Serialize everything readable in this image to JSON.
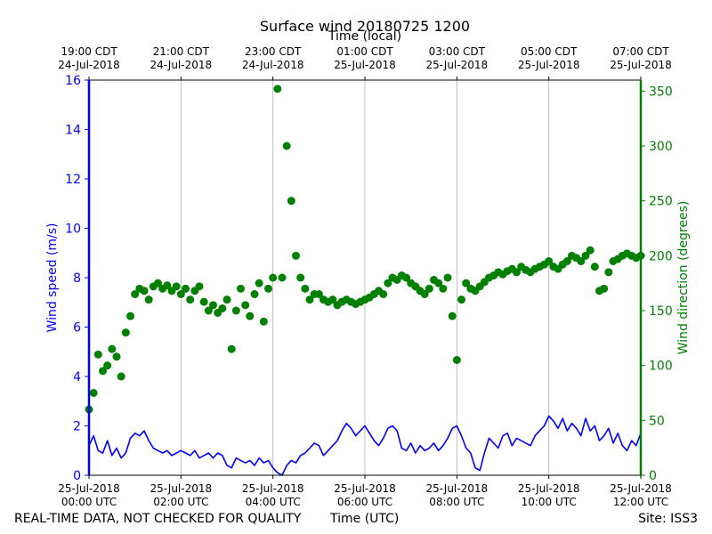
{
  "title": "Surface wind 20180725 1200",
  "top_axis_label": "Time (local)",
  "footer": {
    "left": "REAL-TIME DATA, NOT CHECKED FOR QUALITY",
    "center": "Time (UTC)",
    "right": "Site: ISS3"
  },
  "colors": {
    "speed": "#0000ff",
    "direction": "#008000",
    "grid": "#b0b0b0"
  },
  "chart_data": {
    "type": "line",
    "title": "Surface wind 20180725 1200",
    "xlabel": "Time (UTC)",
    "x2label": "Time (local)",
    "ylabel": "Wind speed (m/s)",
    "y2label": "Wind direction (degrees)",
    "xlim_hours_utc": [
      0,
      12
    ],
    "ylim": [
      0,
      16
    ],
    "y2lim": [
      0,
      360
    ],
    "yticks": [
      0,
      2,
      4,
      6,
      8,
      10,
      12,
      14,
      16
    ],
    "y2ticks": [
      0,
      50,
      100,
      150,
      200,
      250,
      300,
      350
    ],
    "grid": "vertical",
    "x_ticks_bottom": [
      {
        "hour": 0,
        "line1": "25-Jul-2018",
        "line2": "00:00 UTC"
      },
      {
        "hour": 2,
        "line1": "25-Jul-2018",
        "line2": "02:00 UTC"
      },
      {
        "hour": 4,
        "line1": "25-Jul-2018",
        "line2": "04:00 UTC"
      },
      {
        "hour": 6,
        "line1": "25-Jul-2018",
        "line2": "06:00 UTC"
      },
      {
        "hour": 8,
        "line1": "25-Jul-2018",
        "line2": "08:00 UTC"
      },
      {
        "hour": 10,
        "line1": "25-Jul-2018",
        "line2": "10:00 UTC"
      },
      {
        "hour": 12,
        "line1": "25-Jul-2018",
        "line2": "12:00 UTC"
      }
    ],
    "x_ticks_top": [
      {
        "hour": 0,
        "line1": "19:00 CDT",
        "line2": "24-Jul-2018"
      },
      {
        "hour": 2,
        "line1": "21:00 CDT",
        "line2": "24-Jul-2018"
      },
      {
        "hour": 4,
        "line1": "23:00 CDT",
        "line2": "24-Jul-2018"
      },
      {
        "hour": 6,
        "line1": "01:00 CDT",
        "line2": "25-Jul-2018"
      },
      {
        "hour": 8,
        "line1": "03:00 CDT",
        "line2": "25-Jul-2018"
      },
      {
        "hour": 10,
        "line1": "05:00 CDT",
        "line2": "25-Jul-2018"
      },
      {
        "hour": 12,
        "line1": "07:00 CDT",
        "line2": "25-Jul-2018"
      }
    ],
    "series": [
      {
        "name": "Wind speed",
        "axis": "left",
        "style": "line",
        "x_hours": [
          0,
          0.1,
          0.2,
          0.3,
          0.4,
          0.5,
          0.6,
          0.7,
          0.8,
          0.9,
          1.0,
          1.1,
          1.2,
          1.3,
          1.4,
          1.5,
          1.6,
          1.7,
          1.8,
          1.9,
          2.0,
          2.1,
          2.2,
          2.3,
          2.4,
          2.5,
          2.6,
          2.7,
          2.8,
          2.9,
          3.0,
          3.1,
          3.2,
          3.3,
          3.4,
          3.5,
          3.6,
          3.7,
          3.8,
          3.9,
          4.0,
          4.1,
          4.2,
          4.3,
          4.4,
          4.5,
          4.6,
          4.7,
          4.8,
          4.9,
          5.0,
          5.1,
          5.2,
          5.3,
          5.4,
          5.5,
          5.6,
          5.7,
          5.8,
          5.9,
          6.0,
          6.1,
          6.2,
          6.3,
          6.4,
          6.5,
          6.6,
          6.7,
          6.8,
          6.9,
          7.0,
          7.1,
          7.2,
          7.3,
          7.4,
          7.5,
          7.6,
          7.7,
          7.8,
          7.9,
          8.0,
          8.1,
          8.2,
          8.3,
          8.4,
          8.5,
          8.6,
          8.7,
          8.8,
          8.9,
          9.0,
          9.1,
          9.2,
          9.3,
          9.4,
          9.5,
          9.6,
          9.7,
          9.8,
          9.9,
          10.0,
          10.1,
          10.2,
          10.3,
          10.4,
          10.5,
          10.6,
          10.7,
          10.8,
          10.9,
          11.0,
          11.1,
          11.2,
          11.3,
          11.4,
          11.5,
          11.6,
          11.7,
          11.8,
          11.9,
          12.0
        ],
        "values": [
          1.2,
          1.6,
          1.0,
          0.9,
          1.4,
          0.8,
          1.1,
          0.7,
          0.9,
          1.5,
          1.7,
          1.6,
          1.8,
          1.4,
          1.1,
          1.0,
          0.9,
          1.0,
          0.8,
          0.9,
          1.0,
          0.9,
          0.8,
          1.0,
          0.7,
          0.8,
          0.9,
          0.7,
          0.9,
          0.8,
          0.4,
          0.3,
          0.7,
          0.6,
          0.5,
          0.6,
          0.4,
          0.7,
          0.5,
          0.6,
          0.3,
          0.1,
          0.0,
          0.4,
          0.6,
          0.5,
          0.8,
          0.9,
          1.1,
          1.3,
          1.2,
          0.8,
          1.0,
          1.2,
          1.4,
          1.8,
          2.1,
          1.9,
          1.6,
          1.8,
          2.0,
          1.7,
          1.4,
          1.2,
          1.5,
          1.9,
          2.0,
          1.8,
          1.1,
          1.0,
          1.3,
          0.9,
          1.2,
          1.0,
          1.1,
          1.3,
          1.0,
          1.2,
          1.5,
          1.9,
          2.0,
          1.6,
          1.1,
          0.9,
          0.3,
          0.2,
          0.9,
          1.5,
          1.3,
          1.1,
          1.6,
          1.7,
          1.2,
          1.5,
          1.4,
          1.3,
          1.2,
          1.6,
          1.8,
          2.0,
          2.4,
          2.2,
          1.9,
          2.3,
          1.8,
          2.1,
          1.9,
          1.6,
          2.3,
          1.8,
          2.0,
          1.4,
          1.6,
          1.9,
          1.3,
          1.7,
          1.2,
          1.0,
          1.4,
          1.2,
          1.7
        ]
      },
      {
        "name": "Wind direction",
        "axis": "right",
        "style": "markers",
        "x_hours": [
          0,
          0.1,
          0.2,
          0.3,
          0.4,
          0.5,
          0.6,
          0.7,
          0.8,
          0.9,
          1.0,
          1.1,
          1.2,
          1.3,
          1.4,
          1.5,
          1.6,
          1.7,
          1.8,
          1.9,
          2.0,
          2.1,
          2.2,
          2.3,
          2.4,
          2.5,
          2.6,
          2.7,
          2.8,
          2.9,
          3.0,
          3.1,
          3.2,
          3.3,
          3.4,
          3.5,
          3.6,
          3.7,
          3.8,
          3.9,
          4.0,
          4.1,
          4.2,
          4.3,
          4.4,
          4.5,
          4.6,
          4.7,
          4.8,
          4.9,
          5.0,
          5.1,
          5.2,
          5.3,
          5.4,
          5.5,
          5.6,
          5.7,
          5.8,
          5.9,
          6.0,
          6.1,
          6.2,
          6.3,
          6.4,
          6.5,
          6.6,
          6.7,
          6.8,
          6.9,
          7.0,
          7.1,
          7.2,
          7.3,
          7.4,
          7.5,
          7.6,
          7.7,
          7.8,
          7.9,
          8.0,
          8.1,
          8.2,
          8.3,
          8.4,
          8.5,
          8.6,
          8.7,
          8.8,
          8.9,
          9.0,
          9.1,
          9.2,
          9.3,
          9.4,
          9.5,
          9.6,
          9.7,
          9.8,
          9.9,
          10.0,
          10.1,
          10.2,
          10.3,
          10.4,
          10.5,
          10.6,
          10.7,
          10.8,
          10.9,
          11.0,
          11.1,
          11.2,
          11.3,
          11.4,
          11.5,
          11.6,
          11.7,
          11.8,
          11.9,
          12.0
        ],
        "values": [
          60,
          75,
          110,
          95,
          100,
          115,
          108,
          90,
          130,
          145,
          165,
          170,
          168,
          160,
          172,
          175,
          170,
          173,
          168,
          172,
          165,
          170,
          160,
          168,
          172,
          158,
          150,
          155,
          148,
          152,
          160,
          115,
          150,
          170,
          155,
          145,
          165,
          175,
          140,
          170,
          180,
          352,
          180,
          300,
          250,
          200,
          180,
          170,
          160,
          165,
          165,
          160,
          158,
          160,
          155,
          158,
          160,
          158,
          156,
          158,
          160,
          162,
          165,
          168,
          165,
          175,
          180,
          178,
          182,
          180,
          175,
          172,
          168,
          165,
          170,
          178,
          175,
          170,
          180,
          145,
          105,
          160,
          175,
          170,
          168,
          172,
          176,
          180,
          182,
          185,
          183,
          186,
          188,
          185,
          190,
          187,
          185,
          188,
          190,
          192,
          195,
          190,
          188,
          192,
          195,
          200,
          198,
          195,
          200,
          205,
          190,
          168,
          170,
          185,
          195,
          197,
          200,
          202,
          200,
          198,
          200
        ]
      }
    ]
  }
}
